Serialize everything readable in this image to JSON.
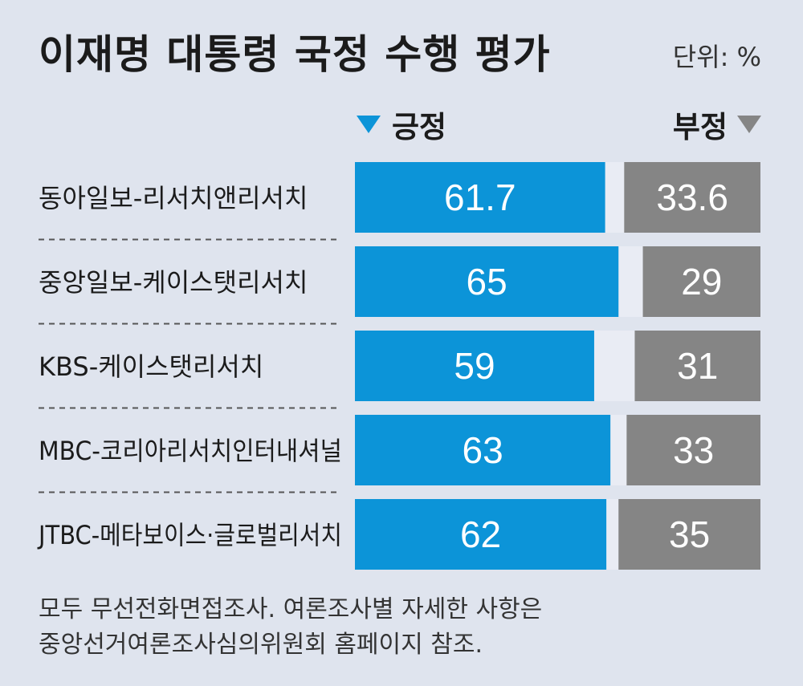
{
  "header": {
    "title": "이재명 대통령 국정 수행 평가",
    "unit": "단위: %"
  },
  "legend": {
    "positive": "긍정",
    "negative": "부정"
  },
  "colors": {
    "positive": "#0c94d8",
    "negative": "#858585",
    "track": "#e9ecf4",
    "background": "#dfe4ee"
  },
  "chart_data": {
    "type": "bar",
    "orientation": "horizontal-diverging",
    "title": "이재명 대통령 국정 수행 평가",
    "categories": [
      "동아일보-리서치앤리서치",
      "중앙일보-케이스탯리서치",
      "KBS-케이스탯리서치",
      "MBC-코리아리서치인터내셔널",
      "JTBC-메타보이스·글로벌리서치"
    ],
    "series": [
      {
        "name": "긍정",
        "values": [
          61.7,
          65,
          59,
          63,
          62
        ],
        "labels": [
          "61.7",
          "65",
          "59",
          "63",
          "62"
        ]
      },
      {
        "name": "부정",
        "values": [
          33.6,
          29,
          31,
          33,
          35
        ],
        "labels": [
          "33.6",
          "29",
          "31",
          "33",
          "35"
        ]
      }
    ],
    "range": [
      0,
      100
    ],
    "legend_position": "top"
  },
  "footnote": {
    "line1": "모두 무선전화면접조사. 여론조사별 자세한 사항은",
    "line2": "중앙선거여론조사심의위원회 홈페이지 참조."
  }
}
